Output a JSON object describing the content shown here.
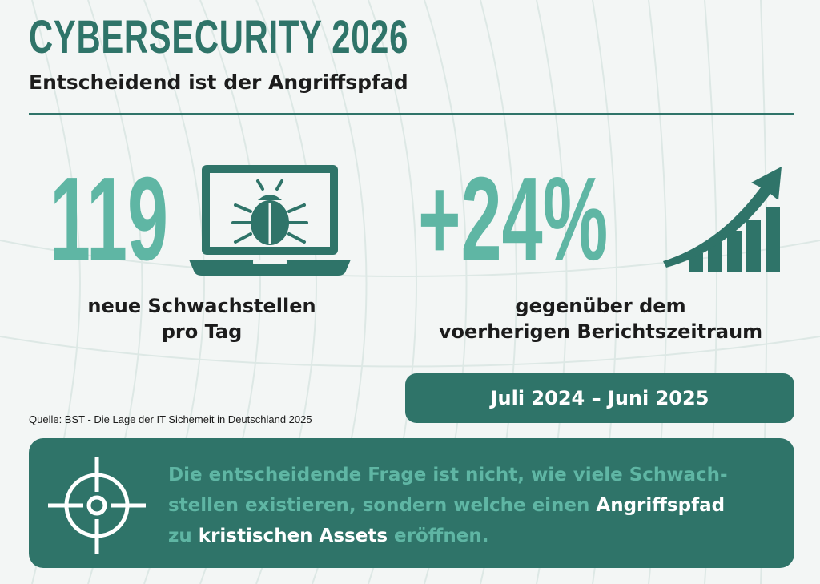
{
  "colors": {
    "primary": "#2f7469",
    "accent": "#5fb6a4",
    "text_dark": "#1c1c1c",
    "background": "#f3f6f5",
    "white": "#ffffff"
  },
  "header": {
    "title": "CYBERSECURITY 2026",
    "subtitle": "Entscheidend ist der Angriffspfad"
  },
  "stats": [
    {
      "value": "119",
      "icon": "laptop-bug-icon",
      "caption_line1": "neue Schwachstellen",
      "caption_line2": "pro Tag"
    },
    {
      "value": "+24%",
      "icon": "growth-chart-arrow-icon",
      "caption_line1": "gegenüber dem",
      "caption_line2": "voerherigen Berichtszeitraum"
    }
  ],
  "period": "Juli 2024 – Juni 2025",
  "source": "Quelle: BST - Die Lage der IT Sichemeit in Deutschland 2025",
  "banner": {
    "icon": "target-crosshair-icon",
    "line1": "Die entscheidende Frage ist nicht, wie viele Schwach-",
    "line2_a": "stellen existieren, sondern welche einen ",
    "line2_b": "Angriffspfad",
    "line3_a": "zu ",
    "line3_b": "kristischen Assets",
    "line3_c": " eröffnen."
  }
}
